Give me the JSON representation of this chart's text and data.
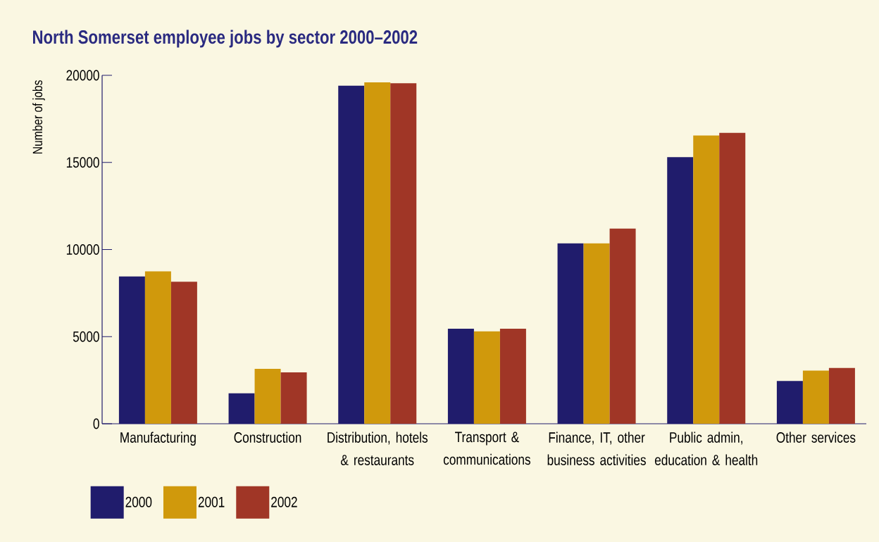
{
  "chart_data": {
    "type": "bar",
    "title": "North Somerset employee jobs by sector 2000–2002",
    "ylabel": "Number of jobs",
    "categories": [
      "Manufacturing",
      "Construction",
      "Distribution, hotels & restaurants",
      "Transport & communications",
      "Finance, IT, other business activities",
      "Public admin, education & health",
      "Other services"
    ],
    "series": [
      {
        "name": "2000",
        "color": "#201c6c",
        "values": [
          8450,
          1750,
          19400,
          5450,
          10350,
          15300,
          2450
        ]
      },
      {
        "name": "2001",
        "color": "#d0990c",
        "values": [
          8750,
          3150,
          19600,
          5300,
          10350,
          16550,
          3050
        ]
      },
      {
        "name": "2002",
        "color": "#a03626",
        "values": [
          8150,
          2950,
          19550,
          5450,
          11200,
          16700,
          3200
        ]
      }
    ],
    "ylim": [
      0,
      20000
    ],
    "yticks": [
      0,
      5000,
      10000,
      15000,
      20000
    ],
    "grid": false,
    "legend": "bottom left"
  }
}
